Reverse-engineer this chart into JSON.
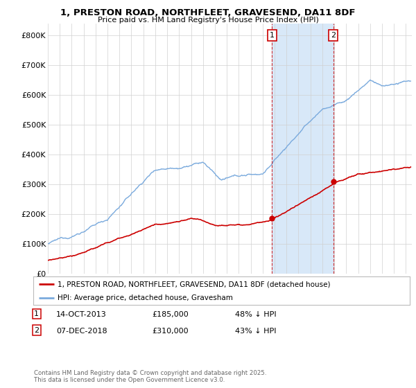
{
  "title": "1, PRESTON ROAD, NORTHFLEET, GRAVESEND, DA11 8DF",
  "subtitle": "Price paid vs. HM Land Registry's House Price Index (HPI)",
  "ylabel_ticks": [
    "£0",
    "£100K",
    "£200K",
    "£300K",
    "£400K",
    "£500K",
    "£600K",
    "£700K",
    "£800K"
  ],
  "ytick_values": [
    0,
    100000,
    200000,
    300000,
    400000,
    500000,
    600000,
    700000,
    800000
  ],
  "ylim": [
    0,
    840000
  ],
  "xlim_start": 1995.0,
  "xlim_end": 2025.5,
  "legend_line1": "1, PRESTON ROAD, NORTHFLEET, GRAVESEND, DA11 8DF (detached house)",
  "legend_line2": "HPI: Average price, detached house, Gravesham",
  "purchase1_date": "14-OCT-2013",
  "purchase1_price": 185000,
  "purchase1_label": "48% ↓ HPI",
  "purchase2_date": "07-DEC-2018",
  "purchase2_price": 310000,
  "purchase2_label": "43% ↓ HPI",
  "purchase1_year": 2013.79,
  "purchase2_year": 2018.92,
  "red_color": "#cc0000",
  "blue_color": "#7aaadd",
  "shade_color": "#d8e8f8",
  "bg_color": "#ffffff",
  "footer": "Contains HM Land Registry data © Crown copyright and database right 2025.\nThis data is licensed under the Open Government Licence v3.0."
}
